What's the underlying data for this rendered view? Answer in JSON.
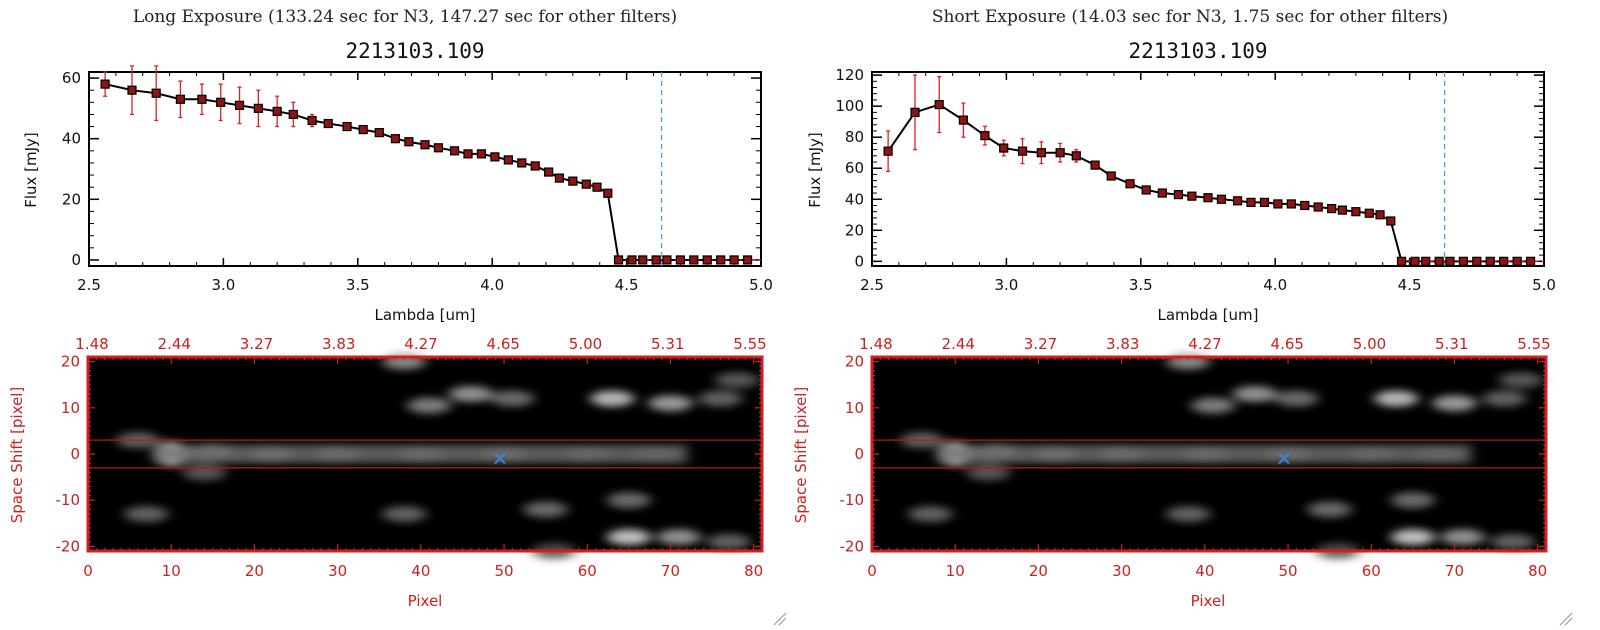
{
  "colors": {
    "data_line": "#000000",
    "error_bar": "#e02020",
    "marker_fill": "#8b1414",
    "wavelength_marker": "#3fa0e0",
    "image_frame": "#d02020",
    "band_lines": "#b41818",
    "source_marker": "#3b82d6"
  },
  "panels": [
    {
      "title": "Long Exposure (133.24 sec for N3, 147.27 sec for other filters)",
      "object": "2213103.109",
      "spectrum": {
        "chart_data": {
          "type": "scatter",
          "xlabel": "Lambda [um]",
          "ylabel": "Flux [mJy]",
          "xlim": [
            2.5,
            5.0
          ],
          "ylim": [
            -2,
            62
          ],
          "xticks": [
            "2.5",
            "3.0",
            "3.5",
            "4.0",
            "4.5",
            "5.0"
          ],
          "yticks": [
            "0",
            "20",
            "40",
            "60"
          ],
          "vline": 4.63,
          "series": [
            {
              "x": [
                2.56,
                2.66,
                2.75,
                2.84,
                2.92,
                2.99,
                3.06,
                3.13,
                3.2,
                3.26,
                3.33,
                3.39,
                3.46,
                3.52,
                3.58,
                3.64,
                3.69,
                3.75,
                3.8,
                3.86,
                3.91,
                3.96,
                4.01,
                4.06,
                4.11,
                4.16,
                4.21,
                4.25,
                4.3,
                4.35,
                4.39,
                4.43,
                4.47,
                4.52,
                4.56,
                4.61,
                4.65,
                4.7,
                4.75,
                4.8,
                4.85,
                4.9,
                4.95
              ],
              "y": [
                58,
                56,
                55,
                53,
                53,
                52,
                51,
                50,
                49,
                48,
                46,
                45,
                44,
                43,
                42,
                40,
                39,
                38,
                37,
                36,
                35,
                35,
                34,
                33,
                32,
                31,
                29,
                27,
                26,
                25,
                24,
                22,
                0,
                0,
                0,
                0,
                0,
                0,
                0,
                0,
                0,
                0,
                0
              ],
              "err": [
                4,
                8,
                9,
                6,
                5,
                6,
                6,
                6,
                5,
                4,
                2,
                1,
                1,
                1,
                1,
                1,
                1,
                1,
                1,
                1,
                1,
                1,
                1,
                1,
                1,
                1,
                1,
                1,
                1,
                1,
                1,
                1,
                0,
                0,
                0,
                0,
                0,
                0,
                0,
                0,
                0,
                0,
                0
              ]
            }
          ]
        }
      },
      "image": {
        "xlabel": "Pixel",
        "ylabel": "Space Shift [pixel]",
        "bottom_ticks": [
          "0",
          "10",
          "20",
          "30",
          "40",
          "50",
          "60",
          "70",
          "80"
        ],
        "top_ticks": [
          "1.48",
          "2.44",
          "3.27",
          "3.83",
          "4.27",
          "4.65",
          "5.00",
          "5.31",
          "5.55"
        ],
        "left_ticks": [
          "20",
          "10",
          "0",
          "-10",
          "-20"
        ],
        "chart_data": {
          "type": "heatmap",
          "xlim": [
            0,
            81
          ],
          "ylim": [
            -21,
            21
          ],
          "band": [
            -3,
            3
          ],
          "marker": {
            "x": 49.5,
            "y": -1
          },
          "blobs": [
            {
              "x": 10,
              "y": 0,
              "amp": 1.0
            },
            {
              "x": 15,
              "y": 0.5,
              "amp": 0.55
            },
            {
              "x": 22,
              "y": 0,
              "amp": 0.45
            },
            {
              "x": 30,
              "y": 0,
              "amp": 0.38
            },
            {
              "x": 40,
              "y": 0,
              "amp": 0.33
            },
            {
              "x": 50,
              "y": 0,
              "amp": 0.3
            },
            {
              "x": 60,
              "y": 0,
              "amp": 0.25
            },
            {
              "x": 68,
              "y": 0,
              "amp": 0.16
            },
            {
              "x": 6,
              "y": 3,
              "amp": 0.3
            },
            {
              "x": 14,
              "y": -4,
              "amp": 0.25
            },
            {
              "x": 38,
              "y": 20,
              "amp": 0.5
            },
            {
              "x": 41,
              "y": 10.5,
              "amp": 0.45
            },
            {
              "x": 46,
              "y": 13,
              "amp": 0.55
            },
            {
              "x": 51,
              "y": 12,
              "amp": 0.35
            },
            {
              "x": 63,
              "y": 12,
              "amp": 0.75
            },
            {
              "x": 70,
              "y": 11,
              "amp": 0.6
            },
            {
              "x": 76,
              "y": 12,
              "amp": 0.3
            },
            {
              "x": 78,
              "y": 16,
              "amp": 0.25
            },
            {
              "x": 7,
              "y": -13,
              "amp": 0.3
            },
            {
              "x": 38,
              "y": -13,
              "amp": 0.3
            },
            {
              "x": 55,
              "y": -12,
              "amp": 0.35
            },
            {
              "x": 65,
              "y": -10,
              "amp": 0.35
            },
            {
              "x": 65,
              "y": -18,
              "amp": 0.8
            },
            {
              "x": 71,
              "y": -18,
              "amp": 0.55
            },
            {
              "x": 77,
              "y": -19,
              "amp": 0.3
            },
            {
              "x": 56,
              "y": -21,
              "amp": 0.2
            }
          ]
        }
      }
    },
    {
      "title": "Short Exposure (14.03 sec for N3, 1.75 sec for other filters)",
      "object": "2213103.109",
      "spectrum": {
        "chart_data": {
          "type": "scatter",
          "xlabel": "Lambda [um]",
          "ylabel": "Flux [mJy]",
          "xlim": [
            2.5,
            5.0
          ],
          "ylim": [
            -3,
            122
          ],
          "xticks": [
            "2.5",
            "3.0",
            "3.5",
            "4.0",
            "4.5",
            "5.0"
          ],
          "yticks": [
            "0",
            "20",
            "40",
            "60",
            "80",
            "100",
            "120"
          ],
          "vline": 4.63,
          "series": [
            {
              "x": [
                2.56,
                2.66,
                2.75,
                2.84,
                2.92,
                2.99,
                3.06,
                3.13,
                3.2,
                3.26,
                3.33,
                3.39,
                3.46,
                3.52,
                3.58,
                3.64,
                3.69,
                3.75,
                3.8,
                3.86,
                3.91,
                3.96,
                4.01,
                4.06,
                4.11,
                4.16,
                4.21,
                4.25,
                4.3,
                4.35,
                4.39,
                4.43,
                4.47,
                4.52,
                4.56,
                4.61,
                4.65,
                4.7,
                4.75,
                4.8,
                4.85,
                4.9,
                4.95
              ],
              "y": [
                71,
                96,
                101,
                91,
                81,
                73,
                71,
                70,
                70,
                68,
                62,
                55,
                50,
                46,
                44,
                43,
                42,
                41,
                40,
                39,
                38,
                38,
                37,
                37,
                36,
                35,
                34,
                33,
                32,
                31,
                30,
                26,
                0,
                0,
                0,
                0,
                0,
                0,
                0,
                0,
                0,
                0,
                0
              ],
              "err": [
                13,
                24,
                18,
                11,
                6,
                5,
                8,
                7,
                6,
                4,
                2,
                1,
                1,
                1,
                1,
                1,
                1,
                1,
                1,
                1,
                1,
                1,
                1,
                1,
                1,
                1,
                1,
                1,
                1,
                1,
                1,
                1,
                0,
                0,
                0,
                0,
                0,
                0,
                0,
                0,
                0,
                0,
                0
              ]
            }
          ]
        }
      },
      "image": {
        "xlabel": "Pixel",
        "ylabel": "Space Shift [pixel]",
        "bottom_ticks": [
          "0",
          "10",
          "20",
          "30",
          "40",
          "50",
          "60",
          "70",
          "80"
        ],
        "top_ticks": [
          "1.48",
          "2.44",
          "3.27",
          "3.83",
          "4.27",
          "4.65",
          "5.00",
          "5.31",
          "5.55"
        ],
        "left_ticks": [
          "20",
          "10",
          "0",
          "-10",
          "-20"
        ],
        "chart_data": {
          "type": "heatmap",
          "xlim": [
            0,
            81
          ],
          "ylim": [
            -21,
            21
          ],
          "band": [
            -3,
            3
          ],
          "marker": {
            "x": 49.5,
            "y": -1
          },
          "blobs": [
            {
              "x": 10,
              "y": 0,
              "amp": 1.0
            },
            {
              "x": 15,
              "y": 0.5,
              "amp": 0.55
            },
            {
              "x": 22,
              "y": 0,
              "amp": 0.45
            },
            {
              "x": 30,
              "y": 0,
              "amp": 0.38
            },
            {
              "x": 40,
              "y": 0,
              "amp": 0.33
            },
            {
              "x": 50,
              "y": 0,
              "amp": 0.3
            },
            {
              "x": 60,
              "y": 0,
              "amp": 0.25
            },
            {
              "x": 68,
              "y": 0,
              "amp": 0.16
            },
            {
              "x": 6,
              "y": 3,
              "amp": 0.3
            },
            {
              "x": 14,
              "y": -4,
              "amp": 0.25
            },
            {
              "x": 38,
              "y": 20,
              "amp": 0.5
            },
            {
              "x": 41,
              "y": 10.5,
              "amp": 0.45
            },
            {
              "x": 46,
              "y": 13,
              "amp": 0.55
            },
            {
              "x": 51,
              "y": 12,
              "amp": 0.35
            },
            {
              "x": 63,
              "y": 12,
              "amp": 0.75
            },
            {
              "x": 70,
              "y": 11,
              "amp": 0.6
            },
            {
              "x": 76,
              "y": 12,
              "amp": 0.3
            },
            {
              "x": 78,
              "y": 16,
              "amp": 0.25
            },
            {
              "x": 7,
              "y": -13,
              "amp": 0.3
            },
            {
              "x": 38,
              "y": -13,
              "amp": 0.3
            },
            {
              "x": 55,
              "y": -12,
              "amp": 0.35
            },
            {
              "x": 65,
              "y": -10,
              "amp": 0.35
            },
            {
              "x": 65,
              "y": -18,
              "amp": 0.8
            },
            {
              "x": 71,
              "y": -18,
              "amp": 0.55
            },
            {
              "x": 77,
              "y": -19,
              "amp": 0.3
            },
            {
              "x": 56,
              "y": -21,
              "amp": 0.2
            }
          ]
        }
      }
    }
  ]
}
